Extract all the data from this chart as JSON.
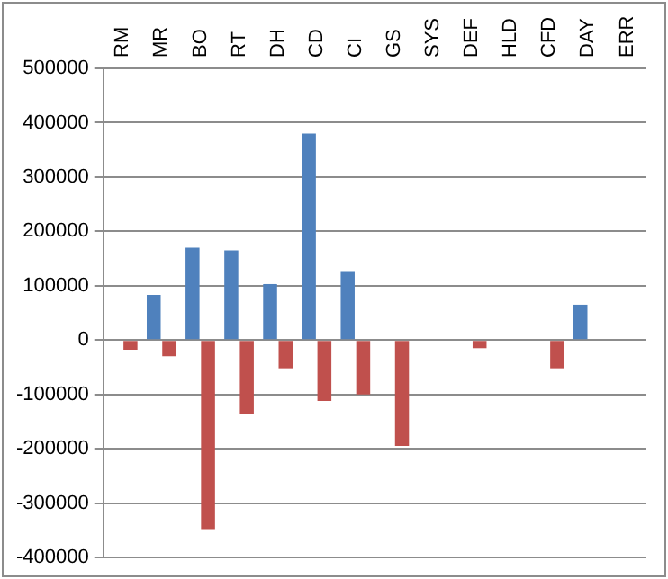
{
  "chart_data": {
    "type": "bar",
    "categories": [
      "RM",
      "MR",
      "BO",
      "RT",
      "DH",
      "CD",
      "CI",
      "GS",
      "SYS",
      "DEF",
      "HLD",
      "CFD",
      "DAY",
      "ERR"
    ],
    "series": [
      {
        "color": "#4f81bd",
        "values": [
          null,
          83000,
          170000,
          165000,
          103000,
          380000,
          127000,
          null,
          null,
          null,
          null,
          null,
          65000,
          null
        ]
      },
      {
        "color": "#c0504d",
        "values": [
          -18000,
          -30000,
          -348000,
          -137000,
          -52000,
          -112000,
          -100000,
          -195000,
          null,
          -15000,
          null,
          -52000,
          null,
          null
        ]
      }
    ],
    "ylim": [
      -400000,
      500000
    ],
    "yticks": [
      -400000,
      -300000,
      -200000,
      -100000,
      0,
      100000,
      200000,
      300000,
      400000,
      500000
    ],
    "grid": "y"
  }
}
